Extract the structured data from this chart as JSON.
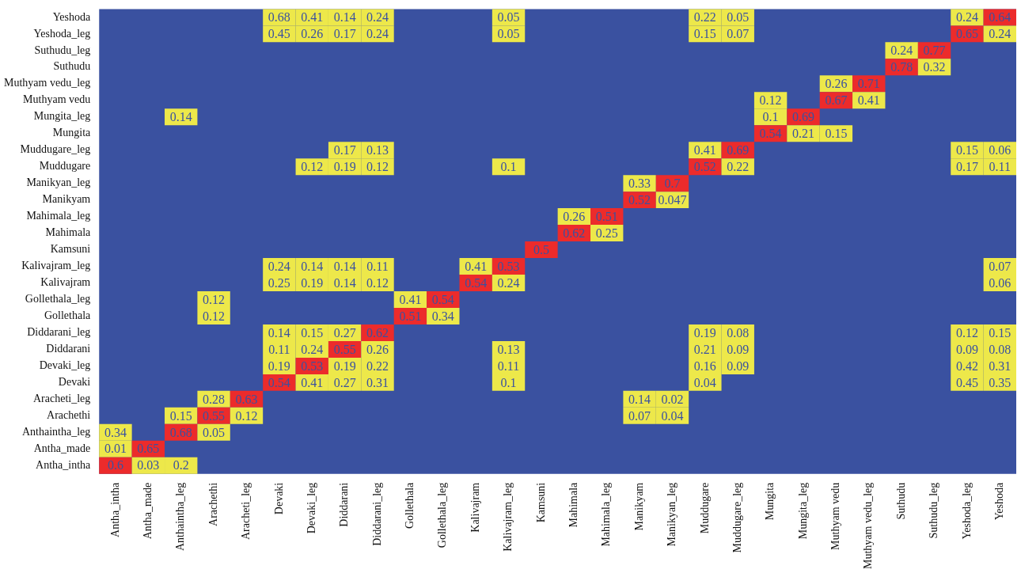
{
  "chart_data": {
    "type": "heatmap",
    "data_labels": true,
    "color": "#3a51a0",
    "categories": [
      "Antha_intha",
      "Antha_made",
      "Anthaintha_leg",
      "Arachethi",
      "Aracheti_leg",
      "Devaki",
      "Devaki_leg",
      "Diddarani",
      "Diddarani_leg",
      "Gollethala",
      "Gollethala_leg",
      "Kalivajram",
      "Kalivajram_leg",
      "Kamsuni",
      "Mahimala",
      "Mahimala_leg",
      "Manikyam",
      "Manikyan_leg",
      "Muddugare",
      "Muddugare_leg",
      "Mungita",
      "Mungita_leg",
      "Muthyam vedu",
      "Muthyam vedu_leg",
      "Suthudu",
      "Suthudu_leg",
      "Yeshoda_leg",
      "Yeshoda"
    ],
    "y_categories": [
      "Yeshoda",
      "Yeshoda_leg",
      "Suthudu_leg",
      "Suthudu",
      "Muthyam vedu_leg",
      "Muthyam vedu",
      "Mungita_leg",
      "Mungita",
      "Muddugare_leg",
      "Muddugare",
      "Manikyan_leg",
      "Manikyam",
      "Mahimala_leg",
      "Mahimala",
      "Kamsuni",
      "Kalivajram_leg",
      "Kalivajram",
      "Gollethala_leg",
      "Gollethala",
      "Diddarani_leg",
      "Diddarani",
      "Devaki_leg",
      "Devaki",
      "Aracheti_leg",
      "Arachethi",
      "Anthaintha_leg",
      "Antha_made",
      "Antha_intha"
    ],
    "cells": [
      [
        null,
        null,
        null,
        null,
        null,
        0.68,
        0.41,
        0.14,
        0.24,
        null,
        null,
        null,
        0.05,
        null,
        null,
        null,
        null,
        null,
        0.22,
        0.05,
        null,
        null,
        null,
        null,
        null,
        null,
        0.24,
        0.64
      ],
      [
        null,
        null,
        null,
        null,
        null,
        0.45,
        0.26,
        0.17,
        0.24,
        null,
        null,
        null,
        0.05,
        null,
        null,
        null,
        null,
        null,
        0.15,
        0.07,
        null,
        null,
        null,
        null,
        null,
        null,
        0.65,
        0.24
      ],
      [
        null,
        null,
        null,
        null,
        null,
        null,
        null,
        null,
        null,
        null,
        null,
        null,
        null,
        null,
        null,
        null,
        null,
        null,
        null,
        null,
        null,
        null,
        null,
        null,
        0.24,
        0.77,
        null,
        null
      ],
      [
        null,
        null,
        null,
        null,
        null,
        null,
        null,
        null,
        null,
        null,
        null,
        null,
        null,
        null,
        null,
        null,
        null,
        null,
        null,
        null,
        null,
        null,
        null,
        null,
        0.78,
        0.32,
        null,
        null
      ],
      [
        null,
        null,
        null,
        null,
        null,
        null,
        null,
        null,
        null,
        null,
        null,
        null,
        null,
        null,
        null,
        null,
        null,
        null,
        null,
        null,
        null,
        null,
        0.26,
        0.71,
        null,
        null,
        null,
        null
      ],
      [
        null,
        null,
        null,
        null,
        null,
        null,
        null,
        null,
        null,
        null,
        null,
        null,
        null,
        null,
        null,
        null,
        null,
        null,
        null,
        null,
        0.12,
        null,
        0.67,
        0.41,
        null,
        null,
        null,
        null
      ],
      [
        null,
        null,
        0.14,
        null,
        null,
        null,
        null,
        null,
        null,
        null,
        null,
        null,
        null,
        null,
        null,
        null,
        null,
        null,
        null,
        null,
        0.1,
        0.69,
        null,
        null,
        null,
        null,
        null,
        null
      ],
      [
        null,
        null,
        null,
        null,
        null,
        null,
        null,
        null,
        null,
        null,
        null,
        null,
        null,
        null,
        null,
        null,
        null,
        null,
        null,
        null,
        0.54,
        0.21,
        0.15,
        null,
        null,
        null,
        null,
        null
      ],
      [
        null,
        null,
        null,
        null,
        null,
        null,
        null,
        0.17,
        0.13,
        null,
        null,
        null,
        null,
        null,
        null,
        null,
        null,
        null,
        0.41,
        0.69,
        null,
        null,
        null,
        null,
        null,
        null,
        0.15,
        0.06
      ],
      [
        null,
        null,
        null,
        null,
        null,
        null,
        0.12,
        0.19,
        0.12,
        null,
        null,
        null,
        0.1,
        null,
        null,
        null,
        null,
        null,
        0.52,
        0.22,
        null,
        null,
        null,
        null,
        null,
        null,
        0.17,
        0.11
      ],
      [
        null,
        null,
        null,
        null,
        null,
        null,
        null,
        null,
        null,
        null,
        null,
        null,
        null,
        null,
        null,
        null,
        0.33,
        0.7,
        null,
        null,
        null,
        null,
        null,
        null,
        null,
        null,
        null,
        null
      ],
      [
        null,
        null,
        null,
        null,
        null,
        null,
        null,
        null,
        null,
        null,
        null,
        null,
        null,
        null,
        null,
        null,
        0.52,
        0.047,
        null,
        null,
        null,
        null,
        null,
        null,
        null,
        null,
        null,
        null
      ],
      [
        null,
        null,
        null,
        null,
        null,
        null,
        null,
        null,
        null,
        null,
        null,
        null,
        null,
        null,
        0.26,
        0.51,
        null,
        null,
        null,
        null,
        null,
        null,
        null,
        null,
        null,
        null,
        null,
        null
      ],
      [
        null,
        null,
        null,
        null,
        null,
        null,
        null,
        null,
        null,
        null,
        null,
        null,
        null,
        null,
        0.62,
        0.25,
        null,
        null,
        null,
        null,
        null,
        null,
        null,
        null,
        null,
        null,
        null,
        null
      ],
      [
        null,
        null,
        null,
        null,
        null,
        null,
        null,
        null,
        null,
        null,
        null,
        null,
        null,
        0.5,
        null,
        null,
        null,
        null,
        null,
        null,
        null,
        null,
        null,
        null,
        null,
        null,
        null,
        null
      ],
      [
        null,
        null,
        null,
        null,
        null,
        0.24,
        0.14,
        0.14,
        0.11,
        null,
        null,
        0.41,
        0.53,
        null,
        null,
        null,
        null,
        null,
        null,
        null,
        null,
        null,
        null,
        null,
        null,
        null,
        null,
        0.07
      ],
      [
        null,
        null,
        null,
        null,
        null,
        0.25,
        0.19,
        0.14,
        0.12,
        null,
        null,
        0.54,
        0.24,
        null,
        null,
        null,
        null,
        null,
        null,
        null,
        null,
        null,
        null,
        null,
        null,
        null,
        null,
        0.06
      ],
      [
        null,
        null,
        null,
        0.12,
        null,
        null,
        null,
        null,
        null,
        0.41,
        0.54,
        null,
        null,
        null,
        null,
        null,
        null,
        null,
        null,
        null,
        null,
        null,
        null,
        null,
        null,
        null,
        null,
        null
      ],
      [
        null,
        null,
        null,
        0.12,
        null,
        null,
        null,
        null,
        null,
        0.51,
        0.34,
        null,
        null,
        null,
        null,
        null,
        null,
        null,
        null,
        null,
        null,
        null,
        null,
        null,
        null,
        null,
        null,
        null
      ],
      [
        null,
        null,
        null,
        null,
        null,
        0.14,
        0.15,
        0.27,
        0.62,
        null,
        null,
        null,
        null,
        null,
        null,
        null,
        null,
        null,
        0.19,
        0.08,
        null,
        null,
        null,
        null,
        null,
        null,
        0.12,
        0.15
      ],
      [
        null,
        null,
        null,
        null,
        null,
        0.11,
        0.24,
        0.55,
        0.26,
        null,
        null,
        null,
        0.13,
        null,
        null,
        null,
        null,
        null,
        0.21,
        0.09,
        null,
        null,
        null,
        null,
        null,
        null,
        0.09,
        0.08
      ],
      [
        null,
        null,
        null,
        null,
        null,
        0.19,
        0.53,
        0.19,
        0.22,
        null,
        null,
        null,
        0.11,
        null,
        null,
        null,
        null,
        null,
        0.16,
        0.09,
        null,
        null,
        null,
        null,
        null,
        null,
        0.42,
        0.31
      ],
      [
        null,
        null,
        null,
        null,
        null,
        0.54,
        0.41,
        0.27,
        0.31,
        null,
        null,
        null,
        0.1,
        null,
        null,
        null,
        null,
        null,
        0.04,
        null,
        null,
        null,
        null,
        null,
        null,
        null,
        0.45,
        0.35
      ],
      [
        null,
        null,
        null,
        0.28,
        0.63,
        null,
        null,
        null,
        null,
        null,
        null,
        null,
        null,
        null,
        null,
        null,
        0.14,
        0.02,
        null,
        null,
        null,
        null,
        null,
        null,
        null,
        null,
        null,
        null
      ],
      [
        null,
        null,
        0.15,
        0.55,
        0.12,
        null,
        null,
        null,
        null,
        null,
        null,
        null,
        null,
        null,
        null,
        null,
        0.07,
        0.04,
        null,
        null,
        null,
        null,
        null,
        null,
        null,
        null,
        null,
        null
      ],
      [
        0.34,
        null,
        0.68,
        0.05,
        null,
        null,
        null,
        null,
        null,
        null,
        null,
        null,
        null,
        null,
        null,
        null,
        null,
        null,
        null,
        null,
        null,
        null,
        null,
        null,
        null,
        null,
        null,
        null
      ],
      [
        0.01,
        0.65,
        null,
        null,
        null,
        null,
        null,
        null,
        null,
        null,
        null,
        null,
        null,
        null,
        null,
        null,
        null,
        null,
        null,
        null,
        null,
        null,
        null,
        null,
        null,
        null,
        null,
        null
      ],
      [
        0.6,
        0.03,
        0.2,
        null,
        null,
        null,
        null,
        null,
        null,
        null,
        null,
        null,
        null,
        null,
        null,
        null,
        null,
        null,
        null,
        null,
        null,
        null,
        null,
        null,
        null,
        null,
        null,
        null
      ]
    ],
    "colors": [
      [
        null,
        null,
        null,
        null,
        null,
        "#ede84a",
        "#ede84a",
        "#ede84a",
        "#ede84a",
        null,
        null,
        null,
        "#ede84a",
        null,
        null,
        null,
        null,
        null,
        "#ede84a",
        "#ede84a",
        null,
        null,
        null,
        null,
        null,
        null,
        "#ede84a",
        "#ec2b2b"
      ],
      [
        null,
        null,
        null,
        null,
        null,
        "#ede84a",
        "#ede84a",
        "#ede84a",
        "#ede84a",
        null,
        null,
        null,
        "#ede84a",
        null,
        null,
        null,
        null,
        null,
        "#ede84a",
        "#ede84a",
        null,
        null,
        null,
        null,
        null,
        null,
        "#ec2b2b",
        "#ede84a"
      ],
      [
        null,
        null,
        null,
        null,
        null,
        null,
        null,
        null,
        null,
        null,
        null,
        null,
        null,
        null,
        null,
        null,
        null,
        null,
        null,
        null,
        null,
        null,
        null,
        null,
        "#ede84a",
        "#ec2b2b",
        null,
        null
      ],
      [
        null,
        null,
        null,
        null,
        null,
        null,
        null,
        null,
        null,
        null,
        null,
        null,
        null,
        null,
        null,
        null,
        null,
        null,
        null,
        null,
        null,
        null,
        null,
        null,
        "#ec2b2b",
        "#ede84a",
        null,
        null
      ],
      [
        null,
        null,
        null,
        null,
        null,
        null,
        null,
        null,
        null,
        null,
        null,
        null,
        null,
        null,
        null,
        null,
        null,
        null,
        null,
        null,
        null,
        null,
        "#ede84a",
        "#ec2b2b",
        null,
        null,
        null,
        null
      ],
      [
        null,
        null,
        null,
        null,
        null,
        null,
        null,
        null,
        null,
        null,
        null,
        null,
        null,
        null,
        null,
        null,
        null,
        null,
        null,
        null,
        "#ede84a",
        null,
        "#ec2b2b",
        "#ede84a",
        null,
        null,
        null,
        null
      ],
      [
        null,
        null,
        "#ede84a",
        null,
        null,
        null,
        null,
        null,
        null,
        null,
        null,
        null,
        null,
        null,
        null,
        null,
        null,
        null,
        null,
        null,
        "#ede84a",
        "#ec2b2b",
        null,
        null,
        null,
        null,
        null,
        null
      ],
      [
        null,
        null,
        null,
        null,
        null,
        null,
        null,
        null,
        null,
        null,
        null,
        null,
        null,
        null,
        null,
        null,
        null,
        null,
        null,
        null,
        "#ec2b2b",
        "#ede84a",
        "#ede84a",
        null,
        null,
        null,
        null,
        null
      ],
      [
        null,
        null,
        null,
        null,
        null,
        null,
        null,
        "#ede84a",
        "#ede84a",
        null,
        null,
        null,
        null,
        null,
        null,
        null,
        null,
        null,
        "#ede84a",
        "#ec2b2b",
        null,
        null,
        null,
        null,
        null,
        null,
        "#ede84a",
        "#ede84a"
      ],
      [
        null,
        null,
        null,
        null,
        null,
        null,
        "#ede84a",
        "#ede84a",
        "#ede84a",
        null,
        null,
        null,
        "#ede84a",
        null,
        null,
        null,
        null,
        null,
        "#ec2b2b",
        "#ede84a",
        null,
        null,
        null,
        null,
        null,
        null,
        "#ede84a",
        "#ede84a"
      ],
      [
        null,
        null,
        null,
        null,
        null,
        null,
        null,
        null,
        null,
        null,
        null,
        null,
        null,
        null,
        null,
        null,
        "#ede84a",
        "#ec2b2b",
        null,
        null,
        null,
        null,
        null,
        null,
        null,
        null,
        null,
        null
      ],
      [
        null,
        null,
        null,
        null,
        null,
        null,
        null,
        null,
        null,
        null,
        null,
        null,
        null,
        null,
        null,
        null,
        "#ec2b2b",
        "#ede84a",
        null,
        null,
        null,
        null,
        null,
        null,
        null,
        null,
        null,
        null
      ],
      [
        null,
        null,
        null,
        null,
        null,
        null,
        null,
        null,
        null,
        null,
        null,
        null,
        null,
        null,
        "#ede84a",
        "#ec2b2b",
        null,
        null,
        null,
        null,
        null,
        null,
        null,
        null,
        null,
        null,
        null,
        null
      ],
      [
        null,
        null,
        null,
        null,
        null,
        null,
        null,
        null,
        null,
        null,
        null,
        null,
        null,
        null,
        "#ec2b2b",
        "#ede84a",
        null,
        null,
        null,
        null,
        null,
        null,
        null,
        null,
        null,
        null,
        null,
        null
      ],
      [
        null,
        null,
        null,
        null,
        null,
        null,
        null,
        null,
        null,
        null,
        null,
        null,
        null,
        "#ec2b2b",
        null,
        null,
        null,
        null,
        null,
        null,
        null,
        null,
        null,
        null,
        null,
        null,
        null,
        null
      ],
      [
        null,
        null,
        null,
        null,
        null,
        "#ede84a",
        "#ede84a",
        "#ede84a",
        "#ede84a",
        null,
        null,
        "#ede84a",
        "#ec2b2b",
        null,
        null,
        null,
        null,
        null,
        null,
        null,
        null,
        null,
        null,
        null,
        null,
        null,
        null,
        "#ede84a"
      ],
      [
        null,
        null,
        null,
        null,
        null,
        "#ede84a",
        "#ede84a",
        "#ede84a",
        "#ede84a",
        null,
        null,
        "#ec2b2b",
        "#ede84a",
        null,
        null,
        null,
        null,
        null,
        null,
        null,
        null,
        null,
        null,
        null,
        null,
        null,
        null,
        "#ede84a"
      ],
      [
        null,
        null,
        null,
        "#ede84a",
        null,
        null,
        null,
        null,
        null,
        "#ede84a",
        "#ec2b2b",
        null,
        null,
        null,
        null,
        null,
        null,
        null,
        null,
        null,
        null,
        null,
        null,
        null,
        null,
        null,
        null,
        null
      ],
      [
        null,
        null,
        null,
        "#ede84a",
        null,
        null,
        null,
        null,
        null,
        "#ec2b2b",
        "#ede84a",
        null,
        null,
        null,
        null,
        null,
        null,
        null,
        null,
        null,
        null,
        null,
        null,
        null,
        null,
        null,
        null,
        null
      ],
      [
        null,
        null,
        null,
        null,
        null,
        "#ede84a",
        "#ede84a",
        "#ede84a",
        "#ec2b2b",
        null,
        null,
        null,
        null,
        null,
        null,
        null,
        null,
        null,
        "#ede84a",
        "#ede84a",
        null,
        null,
        null,
        null,
        null,
        null,
        "#ede84a",
        "#ede84a"
      ],
      [
        null,
        null,
        null,
        null,
        null,
        "#ede84a",
        "#ede84a",
        "#ec2b2b",
        "#ede84a",
        null,
        null,
        null,
        "#ede84a",
        null,
        null,
        null,
        null,
        null,
        "#ede84a",
        "#ede84a",
        null,
        null,
        null,
        null,
        null,
        null,
        "#ede84a",
        "#ede84a"
      ],
      [
        null,
        null,
        null,
        null,
        null,
        "#ede84a",
        "#ec2b2b",
        "#ede84a",
        "#ede84a",
        null,
        null,
        null,
        "#ede84a",
        null,
        null,
        null,
        null,
        null,
        "#ede84a",
        "#ede84a",
        null,
        null,
        null,
        null,
        null,
        null,
        "#ede84a",
        "#ede84a"
      ],
      [
        null,
        null,
        null,
        null,
        null,
        "#ec2b2b",
        "#ede84a",
        "#ede84a",
        "#ede84a",
        null,
        null,
        null,
        "#ede84a",
        null,
        null,
        null,
        null,
        null,
        "#ede84a",
        null,
        null,
        null,
        null,
        null,
        null,
        null,
        "#ede84a",
        "#ede84a"
      ],
      [
        null,
        null,
        null,
        "#ede84a",
        "#ec2b2b",
        null,
        null,
        null,
        null,
        null,
        null,
        null,
        null,
        null,
        null,
        null,
        "#ede84a",
        "#ede84a",
        null,
        null,
        null,
        null,
        null,
        null,
        null,
        null,
        null,
        null
      ],
      [
        null,
        null,
        "#ede84a",
        "#ec2b2b",
        "#ede84a",
        null,
        null,
        null,
        null,
        null,
        null,
        null,
        null,
        null,
        null,
        null,
        "#ede84a",
        "#ede84a",
        null,
        null,
        null,
        null,
        null,
        null,
        null,
        null,
        null,
        null
      ],
      [
        "#ede84a",
        null,
        "#ec2b2b",
        "#ede84a",
        null,
        null,
        null,
        null,
        null,
        null,
        null,
        null,
        null,
        null,
        null,
        null,
        null,
        null,
        null,
        null,
        null,
        null,
        null,
        null,
        null,
        null,
        null,
        null
      ],
      [
        "#ede84a",
        "#ec2b2b",
        null,
        null,
        null,
        null,
        null,
        null,
        null,
        null,
        null,
        null,
        null,
        null,
        null,
        null,
        null,
        null,
        null,
        null,
        null,
        null,
        null,
        null,
        null,
        null,
        null,
        null
      ],
      [
        "#ec2b2b",
        "#ede84a",
        "#ede84a",
        null,
        null,
        null,
        null,
        null,
        null,
        null,
        null,
        null,
        null,
        null,
        null,
        null,
        null,
        null,
        null,
        null,
        null,
        null,
        null,
        null,
        null,
        null,
        null,
        null
      ]
    ]
  }
}
